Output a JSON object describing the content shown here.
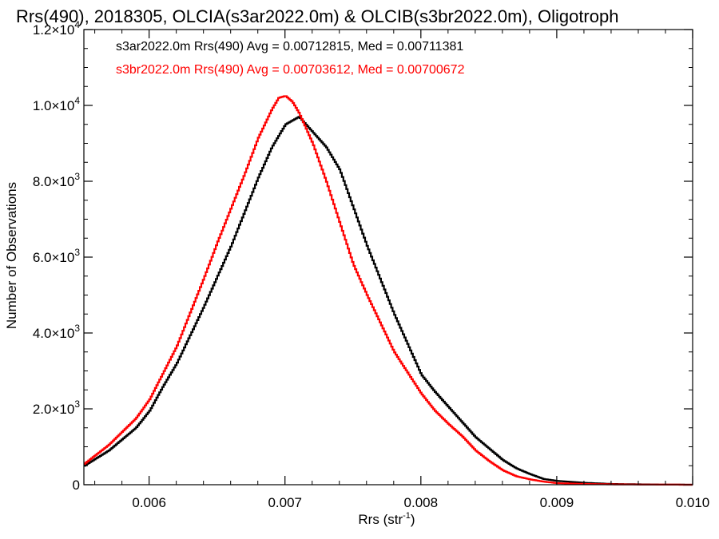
{
  "chart_data": {
    "type": "line",
    "title": "Rrs(490), 2018305, OLCIA(s3ar2022.0m) & OLCIB(s3br2022.0m), Oligotroph",
    "xlabel": "Rrs (str",
    "xlabel_sup": "-1",
    "xlabel_end": ")",
    "ylabel": "Number of Observations",
    "xlim": [
      0.00552,
      0.01
    ],
    "ylim": [
      0,
      12000
    ],
    "x_ticks": [
      {
        "value": 0.006,
        "label": "0.006"
      },
      {
        "value": 0.007,
        "label": "0.007"
      },
      {
        "value": 0.008,
        "label": "0.008"
      },
      {
        "value": 0.009,
        "label": "0.009"
      },
      {
        "value": 0.01,
        "label": "0.010"
      }
    ],
    "y_ticks": [
      {
        "value": 0,
        "mant": "0",
        "exp": ""
      },
      {
        "value": 2000,
        "mant": "2.0×10",
        "exp": "3"
      },
      {
        "value": 4000,
        "mant": "4.0×10",
        "exp": "3"
      },
      {
        "value": 6000,
        "mant": "6.0×10",
        "exp": "3"
      },
      {
        "value": 8000,
        "mant": "8.0×10",
        "exp": "3"
      },
      {
        "value": 10000,
        "mant": "1.0×10",
        "exp": "4"
      },
      {
        "value": 12000,
        "mant": "1.2×10",
        "exp": "4"
      }
    ],
    "grid": false,
    "legend_position": "top-left",
    "series": [
      {
        "name": "s3ar2022.0m Rrs(490) Avg = 0.00712815, Med = 0.00711381",
        "color": "#000000",
        "x": [
          0.00552,
          0.0057,
          0.0059,
          0.006,
          0.0061,
          0.0062,
          0.0063,
          0.0064,
          0.0065,
          0.0066,
          0.0067,
          0.0068,
          0.0069,
          0.007,
          0.00705,
          0.0071,
          0.00715,
          0.0072,
          0.0073,
          0.0074,
          0.0075,
          0.0076,
          0.0077,
          0.0078,
          0.0079,
          0.008,
          0.0081,
          0.0082,
          0.0083,
          0.0084,
          0.0085,
          0.0086,
          0.0087,
          0.0088,
          0.0089,
          0.009,
          0.0092,
          0.0094,
          0.0096,
          0.0098,
          0.01
        ],
        "y": [
          500,
          900,
          1500,
          1950,
          2600,
          3200,
          3950,
          4700,
          5500,
          6300,
          7200,
          8100,
          8900,
          9500,
          9600,
          9700,
          9500,
          9300,
          8900,
          8300,
          7300,
          6300,
          5400,
          4500,
          3700,
          2900,
          2450,
          2050,
          1650,
          1250,
          950,
          650,
          430,
          280,
          150,
          100,
          50,
          20,
          10,
          3,
          0
        ]
      },
      {
        "name": "s3br2022.0m Rrs(490) Avg = 0.00703612, Med = 0.00700672",
        "color": "#ff0000",
        "x": [
          0.00552,
          0.0057,
          0.0059,
          0.006,
          0.0061,
          0.0062,
          0.0063,
          0.0064,
          0.0065,
          0.0066,
          0.0067,
          0.0068,
          0.0069,
          0.00695,
          0.007,
          0.00705,
          0.0071,
          0.0072,
          0.0073,
          0.0074,
          0.0075,
          0.0076,
          0.0077,
          0.0078,
          0.0079,
          0.008,
          0.0081,
          0.0082,
          0.0083,
          0.0084,
          0.0085,
          0.0086,
          0.0087,
          0.0088,
          0.0089,
          0.009,
          0.0092,
          0.0094,
          0.0096,
          0.0098,
          0.01
        ],
        "y": [
          550,
          1050,
          1750,
          2250,
          2950,
          3650,
          4550,
          5450,
          6400,
          7300,
          8200,
          9150,
          9900,
          10200,
          10250,
          10100,
          9800,
          9000,
          8000,
          6900,
          5800,
          5000,
          4250,
          3500,
          2950,
          2400,
          1950,
          1600,
          1280,
          900,
          620,
          380,
          220,
          140,
          80,
          40,
          20,
          10,
          5,
          2,
          0
        ]
      }
    ]
  }
}
